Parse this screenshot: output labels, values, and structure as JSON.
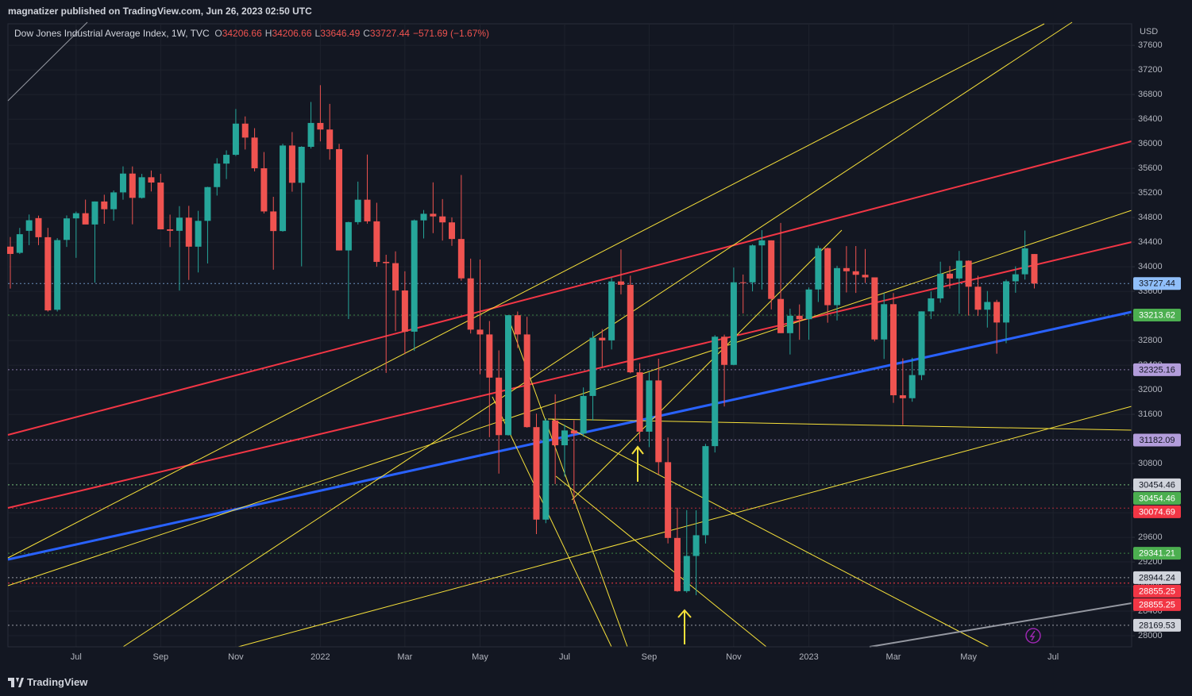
{
  "header": {
    "publisher": "magnatizer published on TradingView.com, Jun 26, 2023 02:50 UTC"
  },
  "footer": {
    "brand": "TradingView"
  },
  "chart_data": {
    "type": "candlestick",
    "title": "Dow Jones Industrial Average Index, 1W, TVC",
    "legend_prefixes": [
      "O",
      "H",
      "L",
      "C"
    ],
    "legend_values": [
      "34206.66",
      "34206.66",
      "33646.49",
      "33727.44"
    ],
    "legend_change": "−571.69 (−1.67%)",
    "currency": "USD",
    "up_color": "#26a69a",
    "down_color": "#ef5350",
    "categories": [
      null,
      null,
      null,
      null,
      null,
      null,
      null,
      "Jul",
      null,
      null,
      null,
      null,
      null,
      null,
      null,
      null,
      "Sep",
      null,
      null,
      null,
      null,
      null,
      null,
      null,
      "Nov",
      null,
      null,
      null,
      null,
      null,
      null,
      null,
      null,
      "2022",
      null,
      null,
      null,
      null,
      null,
      null,
      null,
      null,
      "Mar",
      null,
      null,
      null,
      null,
      null,
      null,
      null,
      "May",
      null,
      null,
      null,
      null,
      null,
      null,
      null,
      null,
      "Jul",
      null,
      null,
      null,
      null,
      null,
      null,
      null,
      null,
      "Sep",
      null,
      null,
      null,
      null,
      null,
      null,
      null,
      null,
      "Nov",
      null,
      null,
      null,
      null,
      null,
      null,
      null,
      "2023",
      null,
      null,
      null,
      null,
      null,
      null,
      null,
      null,
      "Mar",
      null,
      null,
      null,
      null,
      null,
      null,
      null,
      "May",
      null,
      null,
      null,
      null,
      null,
      null,
      null,
      null,
      "Jul"
    ],
    "open": [
      34327,
      34226,
      34584,
      34790,
      34480,
      33300,
      34436,
      34786,
      34870,
      34687,
      35061,
      34935,
      35209,
      35515,
      35120,
      35455,
      35369,
      34608,
      34584,
      34798,
      34326,
      34746,
      35295,
      35677,
      35820,
      36327,
      36100,
      35601,
      34899,
      34580,
      35971,
      35365,
      35950,
      36338,
      36231,
      35912,
      34265,
      34725,
      35090,
      34738,
      34079,
      34058,
      33614,
      32944,
      34754,
      34861,
      34818,
      34721,
      34451,
      33811,
      32977,
      32899,
      32197,
      31262,
      33212,
      32899,
      31392,
      29888,
      31500,
      31097,
      31338,
      31288,
      31899,
      32845,
      32803,
      33761,
      33706,
      32283,
      31318,
      32151,
      30822,
      29590,
      28725,
      29297,
      29634,
      31083,
      32862,
      32404,
      33747,
      33746,
      34347,
      34429,
      33476,
      32920,
      33203,
      33147,
      33630,
      34302,
      33375,
      33978,
      33926,
      33869,
      33827,
      32817,
      33391,
      31910,
      31862,
      32238,
      33274,
      33486,
      33887,
      33809,
      34098,
      33675,
      33301,
      33427,
      33093,
      33763,
      33877,
      34206.66,
      null,
      null
    ],
    "high": [
      34484,
      34631,
      34849,
      34831,
      34632,
      34465,
      34834,
      34897,
      35091,
      35062,
      35171,
      35240,
      35632,
      35631,
      35510,
      35565,
      35510,
      34847,
      34985,
      34990,
      34909,
      35300,
      35765,
      35892,
      36565,
      36444,
      36253,
      35865,
      35137,
      36000,
      36190,
      35960,
      36679,
      36952,
      36648,
      35999,
      34732,
      35384,
      35824,
      35040,
      34194,
      34250,
      33926,
      34768,
      34922,
      35372,
      35100,
      34803,
      35492,
      34132,
      34117,
      33118,
      32640,
      33213,
      33272,
      33185,
      31611,
      31535,
      31926,
      31434,
      31503,
      32037,
      32947,
      32986,
      33823,
      34281,
      33855,
      32431,
      32283,
      32504,
      31223,
      30082,
      30042,
      30039,
      31119,
      32889,
      32896,
      33987,
      33873,
      34363,
      34595,
      34429,
      34712,
      33317,
      33387,
      33664,
      34342,
      34312,
      34016,
      34335,
      34336,
      34288,
      33827,
      33572,
      33572,
      32510,
      32520,
      33274,
      33599,
      34082,
      34013,
      34257,
      34104,
      33854,
      33605,
      33462,
      33791,
      34006,
      34588,
      34206.66,
      null,
      null
    ],
    "low": [
      33644,
      34207,
      34351,
      34351,
      33271,
      33272,
      34322,
      34145,
      34718,
      33741,
      34698,
      34748,
      35090,
      34690,
      35108,
      35224,
      34607,
      34320,
      33613,
      33785,
      33907,
      34053,
      35157,
      35426,
      35800,
      35906,
      35550,
      34866,
      33952,
      34570,
      35220,
      34006,
      35922,
      36038,
      35740,
      34264,
      33150,
      34687,
      34700,
      34000,
      32273,
      32952,
      32578,
      32632,
      34460,
      34546,
      34425,
      34340,
      33773,
      32914,
      32251,
      31228,
      30636,
      31254,
      32677,
      31383,
      29653,
      29830,
      30467,
      30587,
      30143,
      31237,
      31498,
      32361,
      32655,
      33552,
      32268,
      31155,
      31067,
      30620,
      29500,
      28715,
      28700,
      28660,
      29500,
      30980,
      31728,
      32397,
      33241,
      33599,
      33629,
      33306,
      32920,
      32573,
      32812,
      32812,
      33427,
      33090,
      33126,
      33582,
      33574,
      33736,
      32787,
      32500,
      31787,
      31429,
      31805,
      32157,
      33150,
      33416,
      33645,
      33235,
      33206,
      33200,
      33011,
      32586,
      32756,
      33577,
      33791,
      33646.49,
      null,
      null
    ],
    "close": [
      34208,
      34529,
      34756,
      34480,
      33290,
      34433,
      34786,
      34870,
      34687,
      35061,
      34935,
      35209,
      35515,
      35120,
      35455,
      35369,
      34608,
      34584,
      34798,
      34326,
      34746,
      35295,
      35677,
      35820,
      36327,
      36100,
      35601,
      34899,
      34580,
      35971,
      35365,
      35950,
      36338,
      36231,
      35912,
      34265,
      34725,
      35090,
      34738,
      34079,
      34058,
      33614,
      32944,
      34754,
      34861,
      34818,
      34721,
      34451,
      33811,
      32977,
      32899,
      32197,
      31262,
      33212,
      32899,
      31392,
      29888,
      31500,
      31097,
      31338,
      31288,
      31899,
      32845,
      32803,
      33761,
      33706,
      32283,
      31318,
      32151,
      30822,
      29590,
      28725,
      29297,
      29634,
      31083,
      32862,
      32404,
      33747,
      33746,
      34347,
      34429,
      33476,
      32920,
      33203,
      33147,
      33630,
      34302,
      33375,
      33978,
      33926,
      33869,
      33827,
      32817,
      33391,
      31910,
      31862,
      32238,
      33274,
      33486,
      33887,
      33809,
      34098,
      33675,
      33301,
      33427,
      33093,
      33763,
      33877,
      34299,
      33727.44,
      null,
      null
    ],
    "ylim": [
      27820,
      37950
    ],
    "yticks": [
      28000,
      28400,
      28800,
      29200,
      29600,
      30000,
      30400,
      30800,
      31200,
      31600,
      32000,
      32400,
      32800,
      33200,
      33600,
      34000,
      34400,
      34800,
      35200,
      35600,
      36000,
      36400,
      36800,
      37200,
      37600
    ],
    "price_levels": [
      {
        "value": 33727.44,
        "color": "#90bff9",
        "text_color": "#131722"
      },
      {
        "value": 33213.62,
        "color": "#4caf50",
        "text_color": "#ffffff"
      },
      {
        "value": 32325.16,
        "color": "#b39ddb",
        "text_color": "#131722"
      },
      {
        "value": 31182.09,
        "color": "#b39ddb",
        "text_color": "#131722"
      },
      {
        "value": 30454.46,
        "color": "#d1d4dc",
        "text_color": "#131722"
      },
      {
        "value": 30454.46,
        "color": "#4caf50",
        "text_color": "#ffffff"
      },
      {
        "value": 30074.69,
        "color": "#f23645",
        "text_color": "#ffffff"
      },
      {
        "value": 29341.21,
        "color": "#4caf50",
        "text_color": "#ffffff"
      },
      {
        "value": 28944.24,
        "color": "#d1d4dc",
        "text_color": "#131722"
      },
      {
        "value": 28855.25,
        "color": "#f23645",
        "text_color": "#ffffff"
      },
      {
        "value": 28855.25,
        "color": "#f23645",
        "text_color": "#ffffff"
      },
      {
        "value": 28169.53,
        "color": "#d1d4dc",
        "text_color": "#131722"
      }
    ],
    "grid": true
  }
}
